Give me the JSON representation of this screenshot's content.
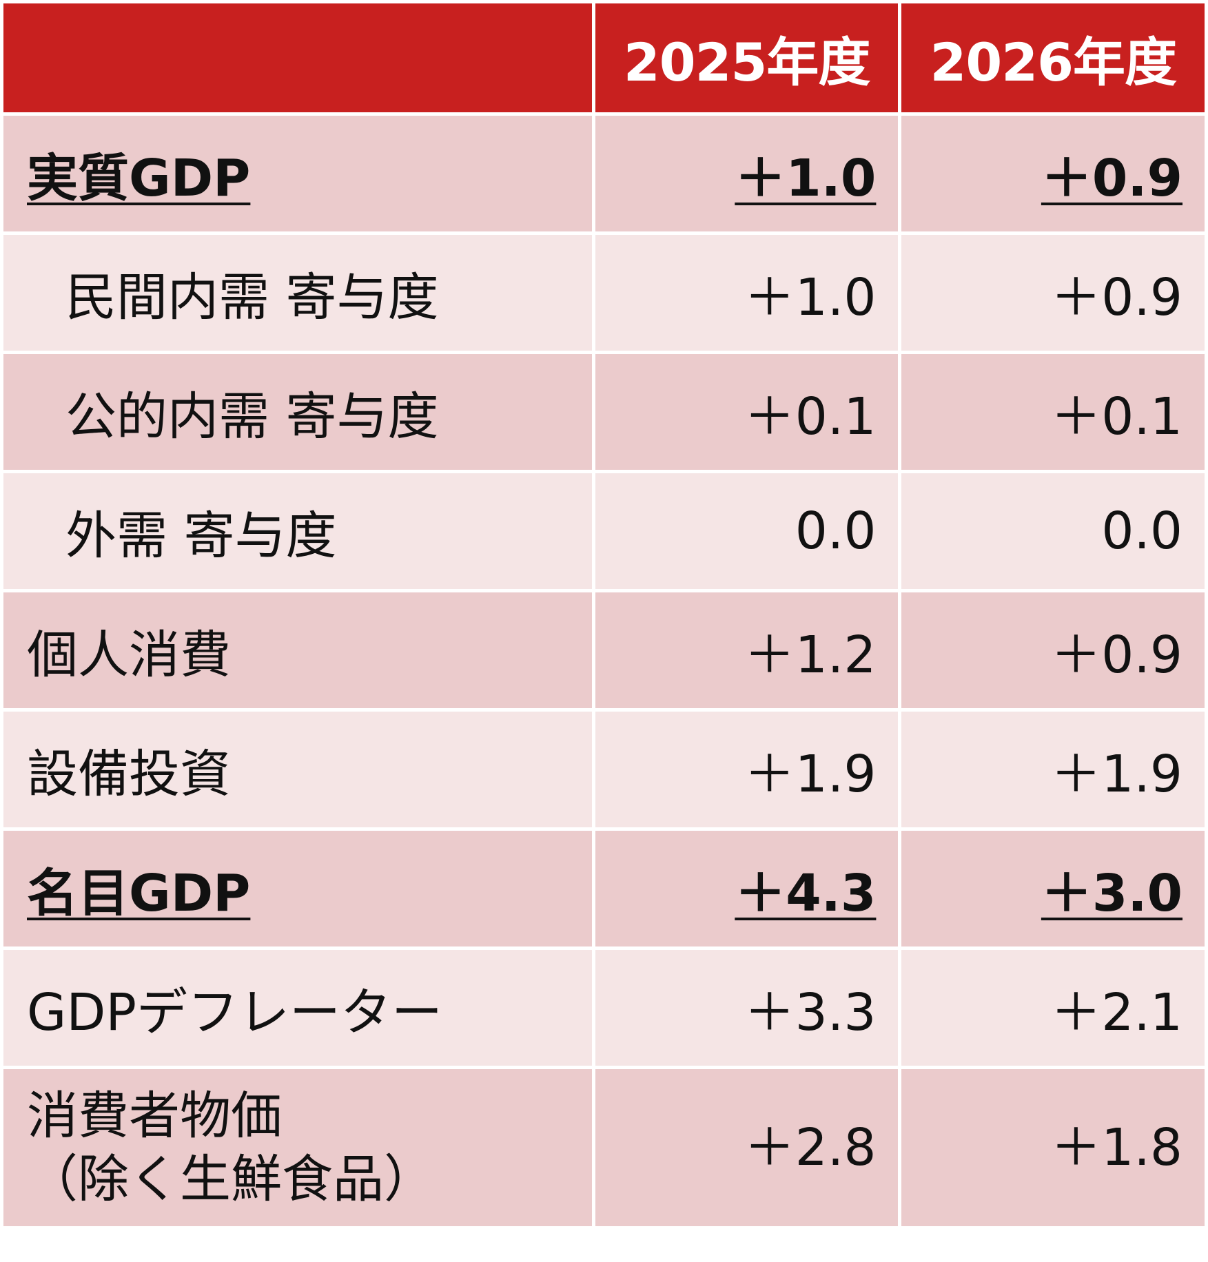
{
  "header": {
    "col1": "",
    "col2": "2025年度",
    "col3": "2026年度"
  },
  "colors": {
    "header": "#c8201f",
    "row_dark": "#ebcbcc",
    "row_light": "#f5e5e5"
  },
  "rows": [
    {
      "label": "実質GDP",
      "v2025": "＋1.0",
      "v2026": "＋0.9"
    },
    {
      "label": "民間内需 寄与度",
      "v2025": "＋1.0",
      "v2026": "＋0.9"
    },
    {
      "label": "公的内需 寄与度",
      "v2025": "＋0.1",
      "v2026": "＋0.1"
    },
    {
      "label": "外需 寄与度",
      "v2025": "0.0",
      "v2026": "0.0"
    },
    {
      "label": "個人消費",
      "v2025": "＋1.2",
      "v2026": "＋0.9"
    },
    {
      "label": "設備投資",
      "v2025": "＋1.9",
      "v2026": "＋1.9"
    },
    {
      "label": "名目GDP",
      "v2025": "＋4.3",
      "v2026": "＋3.0"
    },
    {
      "label": "GDPデフレーター",
      "v2025": "＋3.3",
      "v2026": "＋2.1"
    },
    {
      "label": "消費者物価",
      "label2": "（除く生鮮食品）",
      "v2025": "＋2.8",
      "v2026": "＋1.8"
    }
  ]
}
